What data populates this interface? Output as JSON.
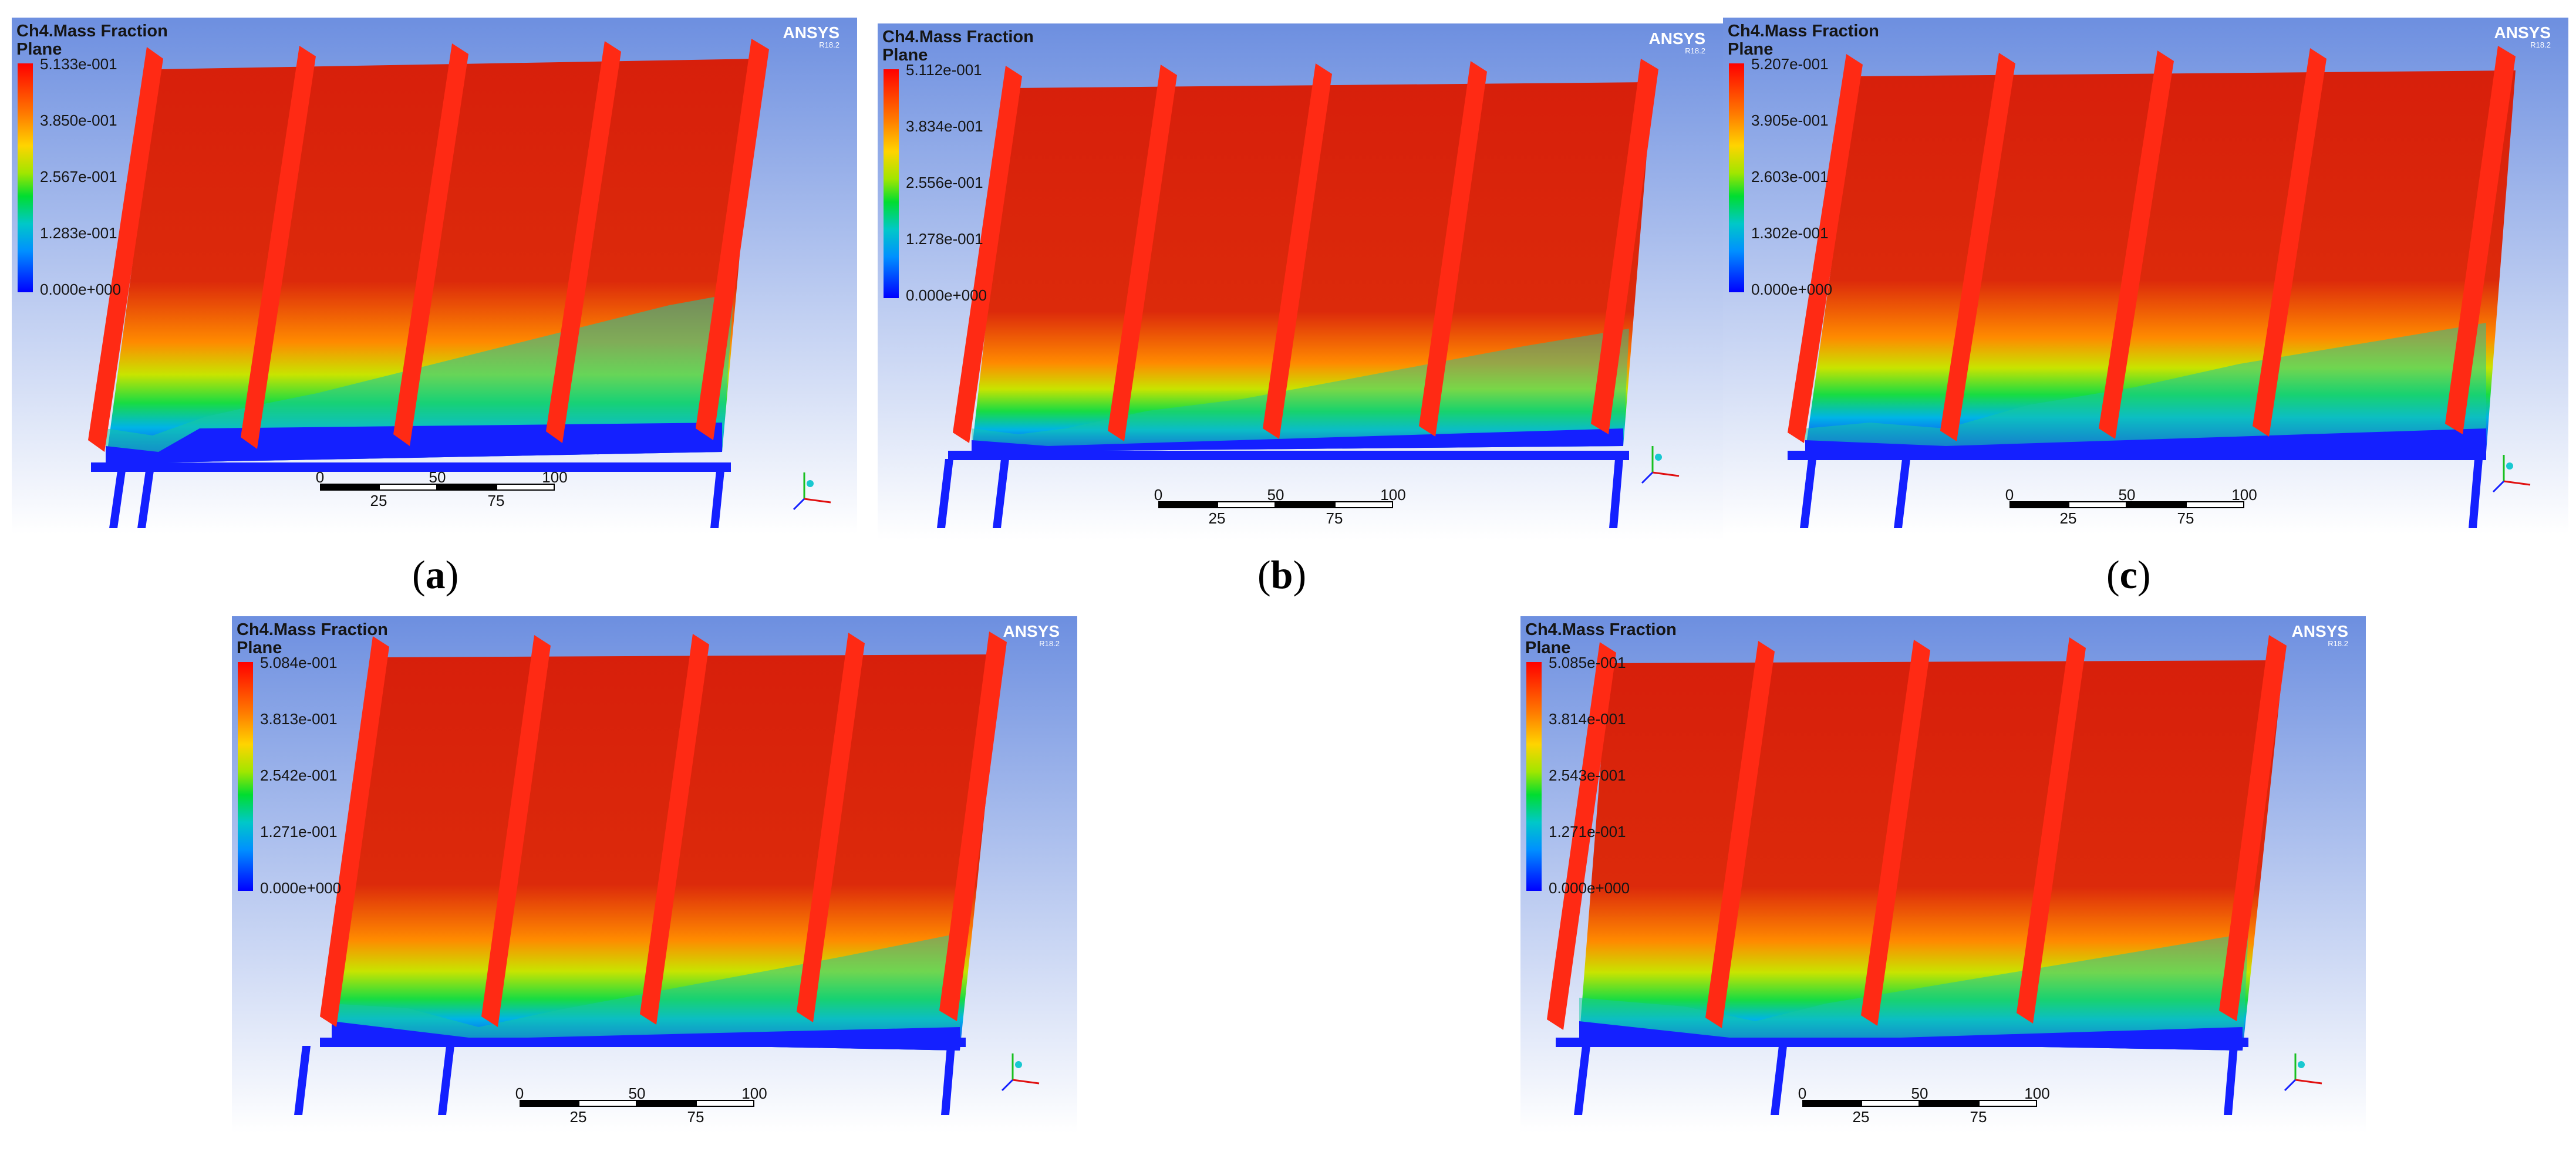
{
  "panels": [
    {
      "id": "a",
      "title_line1": "Ch4.Mass Fraction",
      "title_line2": "Plane",
      "legend": [
        "5.133e-001",
        "3.850e-001",
        "2.567e-001",
        "1.283e-001",
        "0.000e+000"
      ],
      "brand": "ANSYS",
      "brand_version": "R18.2",
      "scale_top": [
        "0",
        "50",
        "100"
      ],
      "scale_bottom": [
        "25",
        "75"
      ],
      "caption_open": "(",
      "caption_letter": "a",
      "caption_close": ")"
    },
    {
      "id": "b",
      "title_line1": "Ch4.Mass Fraction",
      "title_line2": "Plane",
      "legend": [
        "5.112e-001",
        "3.834e-001",
        "2.556e-001",
        "1.278e-001",
        "0.000e+000"
      ],
      "brand": "ANSYS",
      "brand_version": "R18.2",
      "scale_top": [
        "0",
        "50",
        "100"
      ],
      "scale_bottom": [
        "25",
        "75"
      ],
      "caption_open": "(",
      "caption_letter": "b",
      "caption_close": ")"
    },
    {
      "id": "c",
      "title_line1": "Ch4.Mass Fraction",
      "title_line2": "Plane",
      "legend": [
        "5.207e-001",
        "3.905e-001",
        "2.603e-001",
        "1.302e-001",
        "0.000e+000"
      ],
      "brand": "ANSYS",
      "brand_version": "R18.2",
      "scale_top": [
        "0",
        "50",
        "100"
      ],
      "scale_bottom": [
        "25",
        "75"
      ],
      "caption_open": "(",
      "caption_letter": "c",
      "caption_close": ")"
    },
    {
      "id": "d",
      "title_line1": "Ch4.Mass Fraction",
      "title_line2": "Plane",
      "legend": [
        "5.084e-001",
        "3.813e-001",
        "2.542e-001",
        "1.271e-001",
        "0.000e+000"
      ],
      "brand": "ANSYS",
      "brand_version": "R18.2",
      "scale_top": [
        "0",
        "50",
        "100"
      ],
      "scale_bottom": [
        "25",
        "75"
      ]
    },
    {
      "id": "e",
      "title_line1": "Ch4.Mass Fraction",
      "title_line2": "Plane",
      "legend": [
        "5.085e-001",
        "3.814e-001",
        "2.543e-001",
        "1.271e-001",
        "0.000e+000"
      ],
      "brand": "ANSYS",
      "brand_version": "R18.2",
      "scale_top": [
        "0",
        "50",
        "100"
      ],
      "scale_bottom": [
        "25",
        "75"
      ]
    }
  ],
  "colors": {
    "bg_top": "#6d8fe0",
    "bg_bottom": "#ffffff",
    "field_red": "#d71f0b",
    "fin_red": "#ff2a14",
    "bottom_blue": "#1420ff",
    "accent_green": "#18dc42"
  }
}
